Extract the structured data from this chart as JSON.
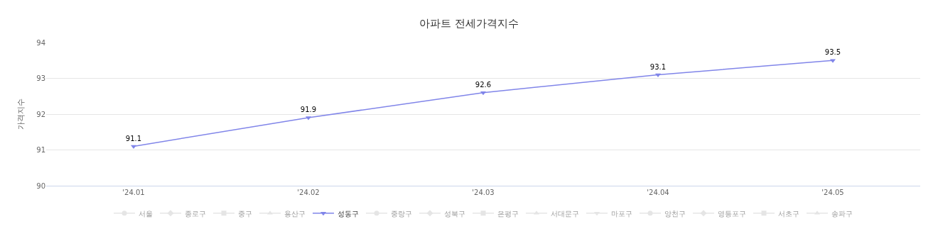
{
  "chart_data": {
    "type": "line",
    "title": "아파트 전세가격지수",
    "ylabel": "가격지수",
    "categories": [
      "'24.01",
      "'24.02",
      "'24.03",
      "'24.04",
      "'24.05"
    ],
    "series": [
      {
        "name": "서울",
        "color": "#cccccc",
        "marker": "circle",
        "values": [
          null,
          null,
          null,
          null,
          null
        ]
      },
      {
        "name": "종로구",
        "color": "#cccccc",
        "marker": "diamond",
        "values": [
          null,
          null,
          null,
          null,
          null
        ]
      },
      {
        "name": "중구",
        "color": "#cccccc",
        "marker": "square",
        "values": [
          null,
          null,
          null,
          null,
          null
        ]
      },
      {
        "name": "용산구",
        "color": "#cccccc",
        "marker": "triangle",
        "values": [
          null,
          null,
          null,
          null,
          null
        ]
      },
      {
        "name": "성동구",
        "color": "#8085e9",
        "marker": "triangle-down",
        "values": [
          91.1,
          91.9,
          92.6,
          93.1,
          93.5
        ]
      },
      {
        "name": "중랑구",
        "color": "#cccccc",
        "marker": "circle",
        "values": [
          null,
          null,
          null,
          null,
          null
        ]
      },
      {
        "name": "성북구",
        "color": "#cccccc",
        "marker": "diamond",
        "values": [
          null,
          null,
          null,
          null,
          null
        ]
      },
      {
        "name": "은평구",
        "color": "#cccccc",
        "marker": "square",
        "values": [
          null,
          null,
          null,
          null,
          null
        ]
      },
      {
        "name": "서대문구",
        "color": "#cccccc",
        "marker": "triangle",
        "values": [
          null,
          null,
          null,
          null,
          null
        ]
      },
      {
        "name": "마포구",
        "color": "#cccccc",
        "marker": "triangle-down",
        "values": [
          null,
          null,
          null,
          null,
          null
        ]
      },
      {
        "name": "양천구",
        "color": "#cccccc",
        "marker": "circle",
        "values": [
          null,
          null,
          null,
          null,
          null
        ]
      },
      {
        "name": "영등포구",
        "color": "#cccccc",
        "marker": "diamond",
        "values": [
          null,
          null,
          null,
          null,
          null
        ]
      },
      {
        "name": "서초구",
        "color": "#cccccc",
        "marker": "square",
        "values": [
          null,
          null,
          null,
          null,
          null
        ]
      },
      {
        "name": "송파구",
        "color": "#cccccc",
        "marker": "triangle",
        "values": [
          null,
          null,
          null,
          null,
          null
        ]
      }
    ],
    "ylim": [
      90,
      94
    ],
    "yticks": [
      90,
      91,
      92,
      93,
      94
    ],
    "grid": "y",
    "legend": "bottom",
    "data_labels": true
  }
}
